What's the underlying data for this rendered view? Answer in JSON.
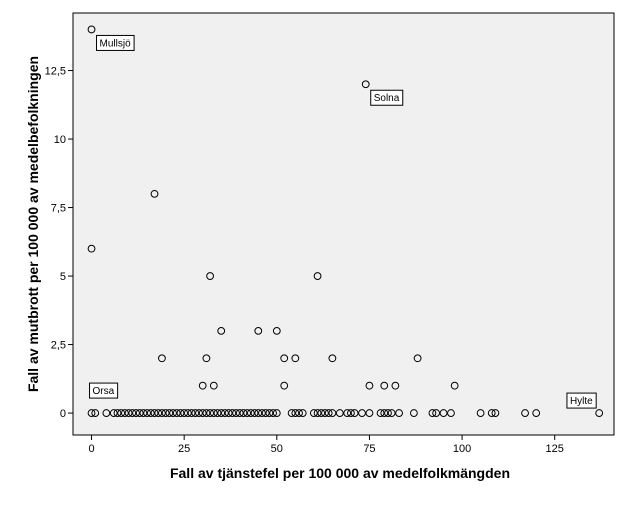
{
  "chart_data": {
    "type": "scatter",
    "xlabel": "Fall av tjänstefel per 100 000 av medelfolkmängden",
    "ylabel": "Fall av mutbrott per 100 000 av medelbefolkningen",
    "xlim": [
      -5,
      141
    ],
    "ylim": [
      -0.8,
      14.6
    ],
    "xticks": [
      {
        "value": 0,
        "label": "0"
      },
      {
        "value": 25,
        "label": "25"
      },
      {
        "value": 50,
        "label": "50"
      },
      {
        "value": 75,
        "label": "75"
      },
      {
        "value": 100,
        "label": "100"
      },
      {
        "value": 125,
        "label": "125"
      }
    ],
    "yticks": [
      {
        "value": 0,
        "label": "0"
      },
      {
        "value": 2.5,
        "label": "2,5"
      },
      {
        "value": 5,
        "label": "5"
      },
      {
        "value": 7.5,
        "label": "7,5"
      },
      {
        "value": 10,
        "label": "10"
      },
      {
        "value": 12.5,
        "label": "12,5"
      }
    ],
    "grid": false,
    "plot_background": "#f0f0f0",
    "marker": "open-circle",
    "points": [
      {
        "x": 0,
        "y": 14
      },
      {
        "x": 74,
        "y": 12
      },
      {
        "x": 17,
        "y": 8
      },
      {
        "x": 0,
        "y": 6
      },
      {
        "x": 32,
        "y": 5
      },
      {
        "x": 61,
        "y": 5
      },
      {
        "x": 35,
        "y": 3
      },
      {
        "x": 45,
        "y": 3
      },
      {
        "x": 50,
        "y": 3
      },
      {
        "x": 19,
        "y": 2
      },
      {
        "x": 31,
        "y": 2
      },
      {
        "x": 52,
        "y": 2
      },
      {
        "x": 55,
        "y": 2
      },
      {
        "x": 65,
        "y": 2
      },
      {
        "x": 88,
        "y": 2
      },
      {
        "x": 30,
        "y": 1
      },
      {
        "x": 33,
        "y": 1
      },
      {
        "x": 52,
        "y": 1
      },
      {
        "x": 75,
        "y": 1
      },
      {
        "x": 79,
        "y": 1
      },
      {
        "x": 82,
        "y": 1
      },
      {
        "x": 98,
        "y": 1
      },
      {
        "x": 0,
        "y": 0
      },
      {
        "x": 1,
        "y": 0
      },
      {
        "x": 4,
        "y": 0
      },
      {
        "x": 6,
        "y": 0
      },
      {
        "x": 7,
        "y": 0
      },
      {
        "x": 8,
        "y": 0
      },
      {
        "x": 9,
        "y": 0
      },
      {
        "x": 10,
        "y": 0
      },
      {
        "x": 11,
        "y": 0
      },
      {
        "x": 12,
        "y": 0
      },
      {
        "x": 13,
        "y": 0
      },
      {
        "x": 14,
        "y": 0
      },
      {
        "x": 15,
        "y": 0
      },
      {
        "x": 16,
        "y": 0
      },
      {
        "x": 17,
        "y": 0
      },
      {
        "x": 18,
        "y": 0
      },
      {
        "x": 19,
        "y": 0
      },
      {
        "x": 20,
        "y": 0
      },
      {
        "x": 21,
        "y": 0
      },
      {
        "x": 22,
        "y": 0
      },
      {
        "x": 23,
        "y": 0
      },
      {
        "x": 24,
        "y": 0
      },
      {
        "x": 25,
        "y": 0
      },
      {
        "x": 26,
        "y": 0
      },
      {
        "x": 27,
        "y": 0
      },
      {
        "x": 28,
        "y": 0
      },
      {
        "x": 29,
        "y": 0
      },
      {
        "x": 30,
        "y": 0
      },
      {
        "x": 31,
        "y": 0
      },
      {
        "x": 32,
        "y": 0
      },
      {
        "x": 33,
        "y": 0
      },
      {
        "x": 34,
        "y": 0
      },
      {
        "x": 35,
        "y": 0
      },
      {
        "x": 36,
        "y": 0
      },
      {
        "x": 37,
        "y": 0
      },
      {
        "x": 38,
        "y": 0
      },
      {
        "x": 39,
        "y": 0
      },
      {
        "x": 40,
        "y": 0
      },
      {
        "x": 41,
        "y": 0
      },
      {
        "x": 42,
        "y": 0
      },
      {
        "x": 43,
        "y": 0
      },
      {
        "x": 44,
        "y": 0
      },
      {
        "x": 45,
        "y": 0
      },
      {
        "x": 46,
        "y": 0
      },
      {
        "x": 47,
        "y": 0
      },
      {
        "x": 48,
        "y": 0
      },
      {
        "x": 49,
        "y": 0
      },
      {
        "x": 50,
        "y": 0
      },
      {
        "x": 54,
        "y": 0
      },
      {
        "x": 55,
        "y": 0
      },
      {
        "x": 56,
        "y": 0
      },
      {
        "x": 57,
        "y": 0
      },
      {
        "x": 60,
        "y": 0
      },
      {
        "x": 61,
        "y": 0
      },
      {
        "x": 62,
        "y": 0
      },
      {
        "x": 63,
        "y": 0
      },
      {
        "x": 64,
        "y": 0
      },
      {
        "x": 65,
        "y": 0
      },
      {
        "x": 67,
        "y": 0
      },
      {
        "x": 69,
        "y": 0
      },
      {
        "x": 70,
        "y": 0
      },
      {
        "x": 71,
        "y": 0
      },
      {
        "x": 73,
        "y": 0
      },
      {
        "x": 75,
        "y": 0
      },
      {
        "x": 78,
        "y": 0
      },
      {
        "x": 79,
        "y": 0
      },
      {
        "x": 80,
        "y": 0
      },
      {
        "x": 81,
        "y": 0
      },
      {
        "x": 83,
        "y": 0
      },
      {
        "x": 87,
        "y": 0
      },
      {
        "x": 92,
        "y": 0
      },
      {
        "x": 93,
        "y": 0
      },
      {
        "x": 95,
        "y": 0
      },
      {
        "x": 97,
        "y": 0
      },
      {
        "x": 105,
        "y": 0
      },
      {
        "x": 108,
        "y": 0
      },
      {
        "x": 109,
        "y": 0
      },
      {
        "x": 117,
        "y": 0
      },
      {
        "x": 120,
        "y": 0
      },
      {
        "x": 137,
        "y": 0
      }
    ],
    "annotations": [
      {
        "text": "Mullsjö",
        "x": 0,
        "y": 14,
        "anchor": "below-right"
      },
      {
        "text": "Solna",
        "x": 74,
        "y": 12,
        "anchor": "below-right"
      },
      {
        "text": "Orsa",
        "x": 0,
        "y": 0,
        "anchor": "above"
      },
      {
        "text": "Hylte",
        "x": 137,
        "y": 0,
        "anchor": "above-left"
      }
    ]
  }
}
